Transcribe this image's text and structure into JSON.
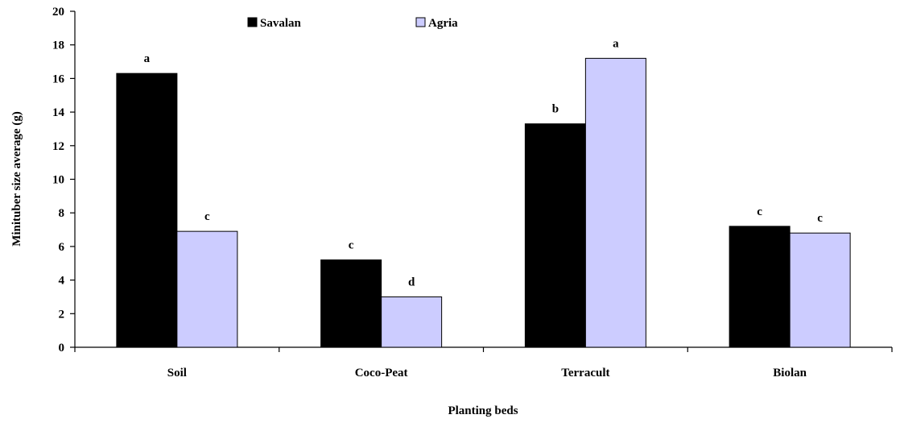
{
  "chart_data": {
    "type": "bar",
    "title": "",
    "xlabel": "Planting beds",
    "ylabel": "Minituber size average (g)",
    "categories": [
      "Soil",
      "Coco-Peat",
      "Terracult",
      "Biolan"
    ],
    "ylim": [
      0,
      20
    ],
    "yticks": [
      "0",
      "2",
      "4",
      "6",
      "8",
      "10",
      "12",
      "14",
      "16",
      "18",
      "20"
    ],
    "grid": false,
    "legend_position": "top",
    "series": [
      {
        "name": "Savalan",
        "color": "#000000",
        "values": [
          16.3,
          5.2,
          13.3,
          7.2
        ],
        "labels": [
          "a",
          "c",
          "b",
          "c"
        ]
      },
      {
        "name": "Agria",
        "color": "#ccccff",
        "values": [
          6.9,
          3.0,
          17.2,
          6.8
        ],
        "labels": [
          "c",
          "d",
          "a",
          "c"
        ]
      }
    ]
  }
}
